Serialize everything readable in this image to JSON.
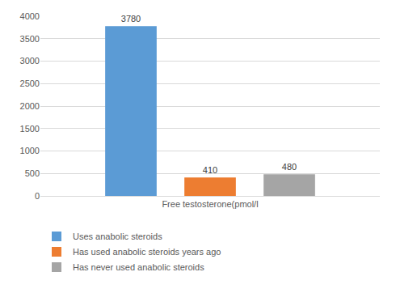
{
  "chart_data": {
    "type": "bar",
    "categories": [
      "Free testosterone(pmol/l"
    ],
    "series": [
      {
        "name": "Uses anabolic steroids",
        "color": "#5b9bd5",
        "values": [
          3780
        ]
      },
      {
        "name": "Has used anabolic steroids years ago",
        "color": "#ed7d31",
        "values": [
          410
        ]
      },
      {
        "name": "Has never used anabolic steroids",
        "color": "#a5a5a5",
        "values": [
          480
        ]
      }
    ],
    "ylim": [
      0,
      4000
    ],
    "yticks": [
      0,
      500,
      1000,
      1500,
      2000,
      2500,
      3000,
      3500,
      4000
    ],
    "grid": true,
    "legend": "bottom",
    "data_labels": true
  }
}
